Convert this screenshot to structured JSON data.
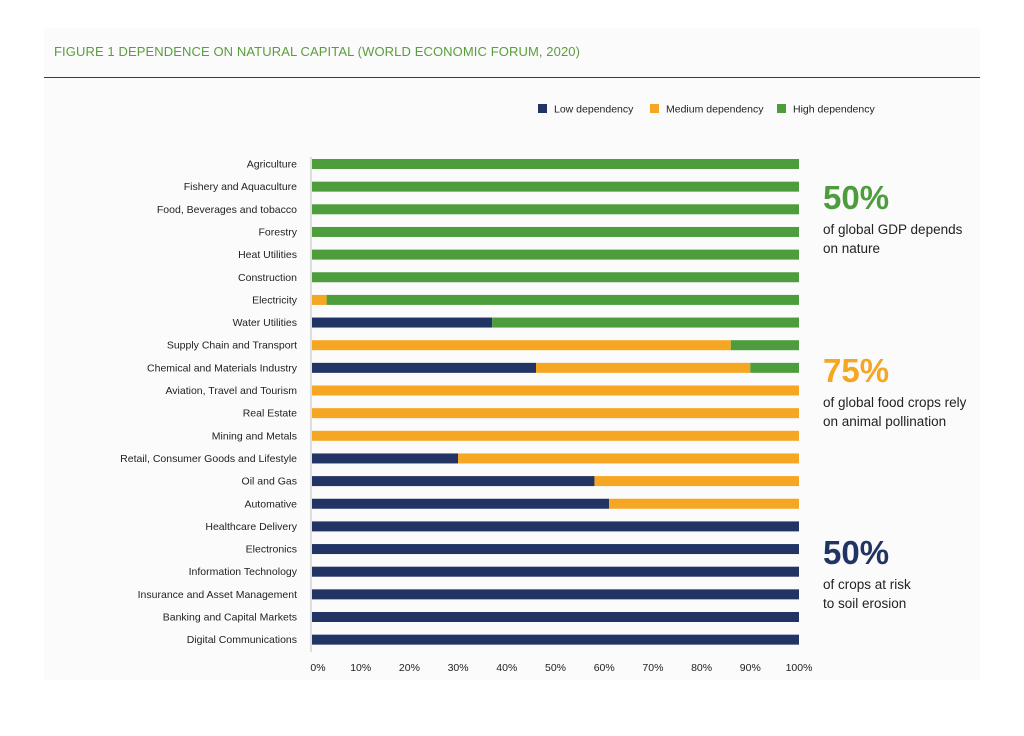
{
  "figure": {
    "title": "FIGURE 1 DEPENDENCE ON NATURAL CAPITAL (WORLD ECONOMIC FORUM, 2020)"
  },
  "colors": {
    "low": "#223463",
    "medium": "#f5a623",
    "high": "#4e9d3d",
    "title": "#5a9e3c"
  },
  "chart_data": {
    "type": "bar",
    "orientation": "horizontal",
    "stacked": true,
    "title": "FIGURE 1 DEPENDENCE ON NATURAL CAPITAL (WORLD ECONOMIC FORUM, 2020)",
    "xlabel": "",
    "ylabel": "",
    "xlim": [
      0,
      100
    ],
    "ticks": [
      "0%",
      "10%",
      "20%",
      "30%",
      "40%",
      "50%",
      "60%",
      "70%",
      "80%",
      "90%",
      "100%"
    ],
    "legend_position": "top-right",
    "categories": [
      "Agriculture",
      "Fishery and Aquaculture",
      "Food, Beverages and tobacco",
      "Forestry",
      "Heat Utilities",
      "Construction",
      "Electricity",
      "Water Utilities",
      "Supply Chain and Transport",
      "Chemical and Materials Industry",
      "Aviation, Travel and Tourism",
      "Real Estate",
      "Mining and Metals",
      "Retail, Consumer Goods and Lifestyle",
      "Oil and Gas",
      "Automative",
      "Healthcare Delivery",
      "Electronics",
      "Information Technology",
      "Insurance and Asset Management",
      "Banking and Capital Markets",
      "Digital Communications"
    ],
    "series": [
      {
        "name": "Low dependency",
        "key": "low",
        "values": [
          0,
          0,
          0,
          0,
          0,
          0,
          0,
          37,
          0,
          46,
          0,
          0,
          0,
          30,
          58,
          61,
          100,
          100,
          100,
          100,
          100,
          100
        ]
      },
      {
        "name": "Medium dependency",
        "key": "medium",
        "values": [
          0,
          0,
          0,
          0,
          0,
          0,
          3,
          0,
          86,
          44,
          100,
          100,
          100,
          70,
          42,
          39,
          0,
          0,
          0,
          0,
          0,
          0
        ]
      },
      {
        "name": "High dependency",
        "key": "high",
        "values": [
          100,
          100,
          100,
          100,
          100,
          100,
          97,
          63,
          14,
          10,
          0,
          0,
          0,
          0,
          0,
          0,
          0,
          0,
          0,
          0,
          0,
          0
        ]
      }
    ]
  },
  "stats": [
    {
      "value": "50%",
      "color": "#4e9d3d",
      "line1": "of global GDP depends",
      "line2": "on nature"
    },
    {
      "value": "75%",
      "color": "#f5a623",
      "line1": "of global food crops rely",
      "line2": "on animal pollination"
    },
    {
      "value": "50%",
      "color": "#223463",
      "line1": "of crops at risk",
      "line2": "to soil erosion"
    }
  ]
}
